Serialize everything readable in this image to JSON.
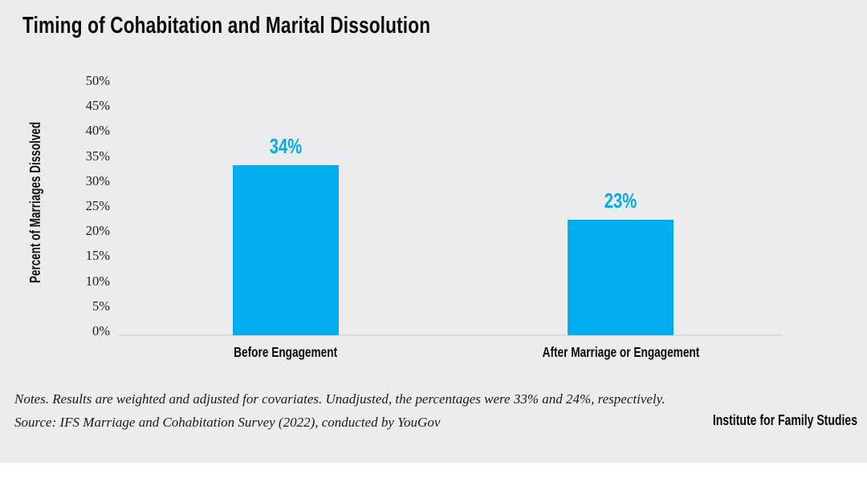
{
  "colors": {
    "background": "#ececee",
    "bar": "#00aeef",
    "value_label": "#00aeef",
    "axis_line": "#d9d9da",
    "text": "#0b0b0b"
  },
  "chart_data": {
    "type": "bar",
    "title": "Timing of Cohabitation and Marital Dissolution",
    "categories": [
      "Before Engagement",
      "After Marriage or Engagement"
    ],
    "values": [
      34,
      23
    ],
    "value_labels": [
      "34%",
      "23%"
    ],
    "xlabel": "",
    "ylabel": "Percent of Marriages Dissolved",
    "ylim": [
      0,
      50
    ],
    "ytick_step": 5,
    "ytick_labels": [
      "0%",
      "5%",
      "10%",
      "15%",
      "20%",
      "25%",
      "30%",
      "35%",
      "40%",
      "45%",
      "50%"
    ],
    "grid": false,
    "legend": "none",
    "bar_color": "#00aeef",
    "value_label_color": "#00aeef"
  },
  "footer": {
    "notes": "Notes. Results are weighted and adjusted for covariates. Unadjusted, the percentages were 33% and 24%, respectively.",
    "source": "Source: IFS Marriage and Cohabitation Survey (2022), conducted by YouGov",
    "brand": "Institute for Family Studies"
  }
}
